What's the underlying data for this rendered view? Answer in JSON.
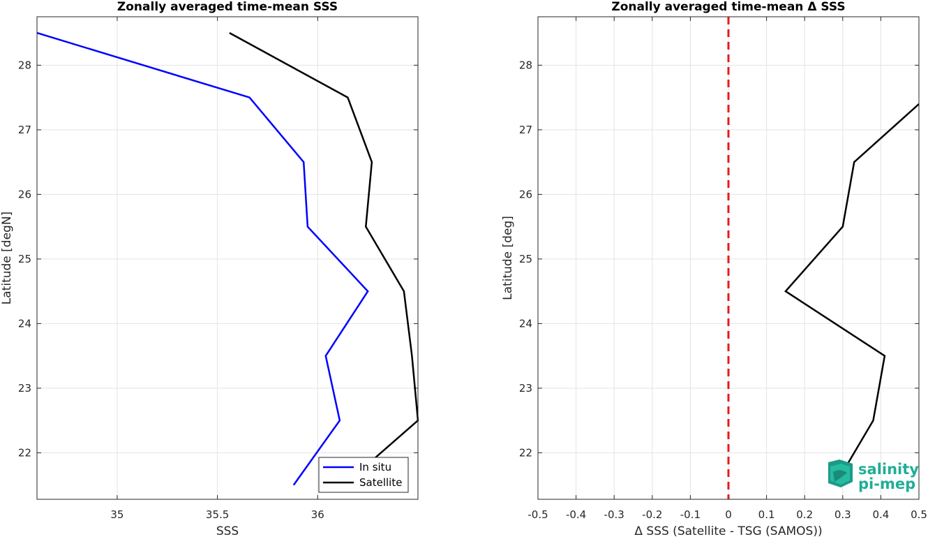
{
  "chart_data": [
    {
      "type": "line",
      "title": "Zonally averaged time-mean SSS",
      "xlabel": "SSS",
      "ylabel": "Latitude [degN]",
      "xlim": [
        34.6,
        36.5
      ],
      "ylim": [
        21.28,
        28.75
      ],
      "xticks": [
        35,
        35.5,
        36
      ],
      "xtick_labels": [
        "35",
        "35.5",
        "36"
      ],
      "yticks": [
        22,
        23,
        24,
        25,
        26,
        27,
        28
      ],
      "ytick_labels": [
        "22",
        "23",
        "24",
        "25",
        "26",
        "27",
        "28"
      ],
      "grid": true,
      "legend": "bottom-right",
      "series": [
        {
          "name": "In situ",
          "color": "#0000ff",
          "x": [
            35.88,
            36.11,
            36.04,
            36.25,
            35.95,
            35.93,
            35.66,
            34.6
          ],
          "y": [
            21.5,
            22.5,
            23.5,
            24.5,
            25.5,
            26.5,
            27.5,
            28.5
          ]
        },
        {
          "name": "Satellite",
          "color": "#000000",
          "x": [
            36.26,
            36.5,
            36.47,
            36.43,
            36.24,
            36.27,
            36.15,
            35.56
          ],
          "y": [
            21.85,
            22.5,
            23.5,
            24.5,
            25.5,
            26.5,
            27.5,
            28.5
          ]
        }
      ]
    },
    {
      "type": "line",
      "title": "Zonally averaged time-mean Δ SSS",
      "xlabel": "Δ SSS (Satellite - TSG (SAMOS))",
      "ylabel": "Latitude [deg]",
      "xlim": [
        -0.5,
        0.5
      ],
      "ylim": [
        21.28,
        28.75
      ],
      "xticks": [
        -0.5,
        -0.4,
        -0.3,
        -0.2,
        -0.1,
        0,
        0.1,
        0.2,
        0.3,
        0.4,
        0.5
      ],
      "xtick_labels": [
        "-0.5",
        "-0.4",
        "-0.3",
        "-0.2",
        "-0.1",
        "0",
        "0.1",
        "0.2",
        "0.3",
        "0.4",
        "0.5"
      ],
      "yticks": [
        22,
        23,
        24,
        25,
        26,
        27,
        28
      ],
      "ytick_labels": [
        "22",
        "23",
        "24",
        "25",
        "26",
        "27",
        "28"
      ],
      "grid": true,
      "reference_line": {
        "x": 0,
        "color": "#e41a1c",
        "style": "dashed"
      },
      "series": [
        {
          "color": "#000000",
          "x": [
            0.28,
            0.38,
            0.41,
            0.15,
            0.3,
            0.33,
            0.5
          ],
          "y": [
            21.5,
            22.5,
            23.5,
            24.5,
            25.5,
            26.5,
            27.4
          ]
        }
      ]
    }
  ],
  "logo": {
    "line1": "salinity",
    "line2": "pi-mep",
    "color": "#1fae96"
  }
}
